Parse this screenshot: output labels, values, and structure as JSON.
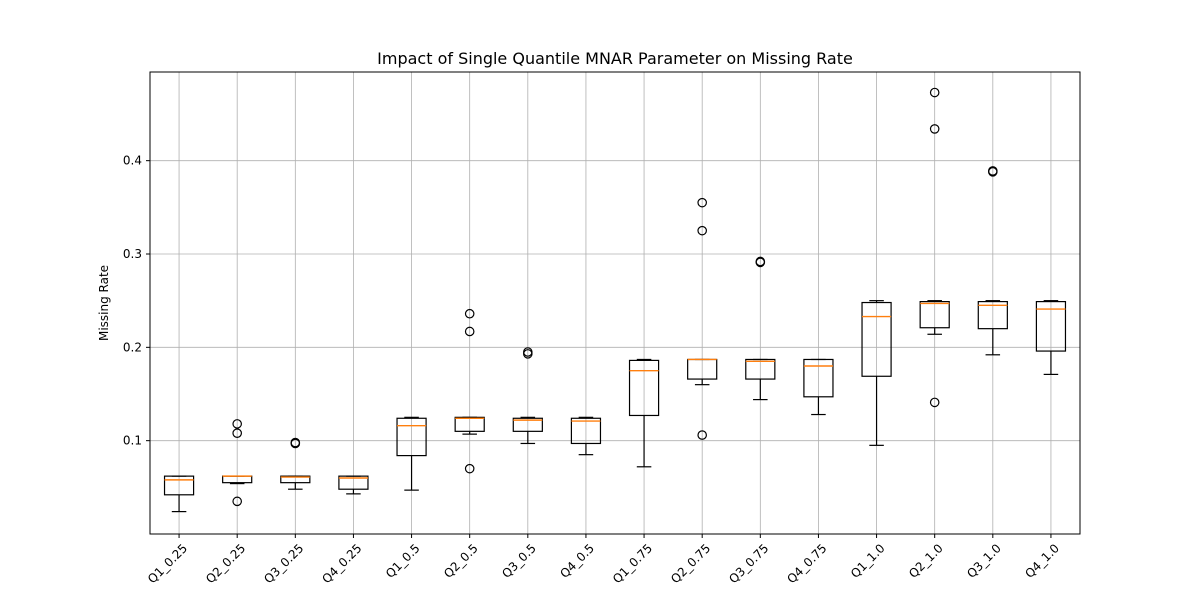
{
  "chart_data": {
    "type": "box",
    "title": "Impact of Single Quantile MNAR Parameter on Missing Rate",
    "xlabel": "",
    "ylabel": "Missing Rate",
    "ylim": [
      0.0,
      0.495
    ],
    "y_ticks": [
      0.1,
      0.2,
      0.3,
      0.4
    ],
    "y_tick_labels": [
      "0.1",
      "0.2",
      "0.3",
      "0.4"
    ],
    "grid": true,
    "colors": {
      "box": "#000000",
      "median": "#ff7f0e",
      "grid": "#b0b0b0"
    },
    "categories": [
      "Q1_0.25",
      "Q2_0.25",
      "Q3_0.25",
      "Q4_0.25",
      "Q1_0.5",
      "Q2_0.5",
      "Q3_0.5",
      "Q4_0.5",
      "Q1_0.75",
      "Q2_0.75",
      "Q3_0.75",
      "Q4_0.75",
      "Q1_1.0",
      "Q2_1.0",
      "Q3_1.0",
      "Q4_1.0"
    ],
    "boxes": [
      {
        "whislo": 0.024,
        "q1": 0.042,
        "med": 0.058,
        "q3": 0.062,
        "whishi": 0.062,
        "fliers": []
      },
      {
        "whislo": 0.054,
        "q1": 0.055,
        "med": 0.062,
        "q3": 0.062,
        "whishi": 0.062,
        "fliers": [
          0.035,
          0.108,
          0.118
        ]
      },
      {
        "whislo": 0.048,
        "q1": 0.055,
        "med": 0.061,
        "q3": 0.062,
        "whishi": 0.062,
        "fliers": [
          0.097,
          0.098
        ]
      },
      {
        "whislo": 0.043,
        "q1": 0.048,
        "med": 0.06,
        "q3": 0.062,
        "whishi": 0.062,
        "fliers": []
      },
      {
        "whislo": 0.047,
        "q1": 0.084,
        "med": 0.116,
        "q3": 0.124,
        "whishi": 0.125,
        "fliers": []
      },
      {
        "whislo": 0.107,
        "q1": 0.11,
        "med": 0.124,
        "q3": 0.125,
        "whishi": 0.125,
        "fliers": [
          0.07,
          0.217,
          0.236
        ]
      },
      {
        "whislo": 0.097,
        "q1": 0.11,
        "med": 0.122,
        "q3": 0.124,
        "whishi": 0.125,
        "fliers": [
          0.193,
          0.195
        ]
      },
      {
        "whislo": 0.085,
        "q1": 0.097,
        "med": 0.121,
        "q3": 0.124,
        "whishi": 0.125,
        "fliers": []
      },
      {
        "whislo": 0.072,
        "q1": 0.127,
        "med": 0.175,
        "q3": 0.186,
        "whishi": 0.187,
        "fliers": []
      },
      {
        "whislo": 0.16,
        "q1": 0.166,
        "med": 0.187,
        "q3": 0.187,
        "whishi": 0.187,
        "fliers": [
          0.106,
          0.325,
          0.355
        ]
      },
      {
        "whislo": 0.144,
        "q1": 0.166,
        "med": 0.185,
        "q3": 0.187,
        "whishi": 0.187,
        "fliers": [
          0.291,
          0.292
        ]
      },
      {
        "whislo": 0.128,
        "q1": 0.147,
        "med": 0.18,
        "q3": 0.187,
        "whishi": 0.187,
        "fliers": []
      },
      {
        "whislo": 0.095,
        "q1": 0.169,
        "med": 0.233,
        "q3": 0.248,
        "whishi": 0.25,
        "fliers": []
      },
      {
        "whislo": 0.214,
        "q1": 0.221,
        "med": 0.247,
        "q3": 0.249,
        "whishi": 0.25,
        "fliers": [
          0.141,
          0.434,
          0.473
        ]
      },
      {
        "whislo": 0.192,
        "q1": 0.22,
        "med": 0.245,
        "q3": 0.249,
        "whishi": 0.25,
        "fliers": [
          0.388,
          0.389
        ]
      },
      {
        "whislo": 0.171,
        "q1": 0.196,
        "med": 0.241,
        "q3": 0.249,
        "whishi": 0.25,
        "fliers": []
      }
    ]
  }
}
